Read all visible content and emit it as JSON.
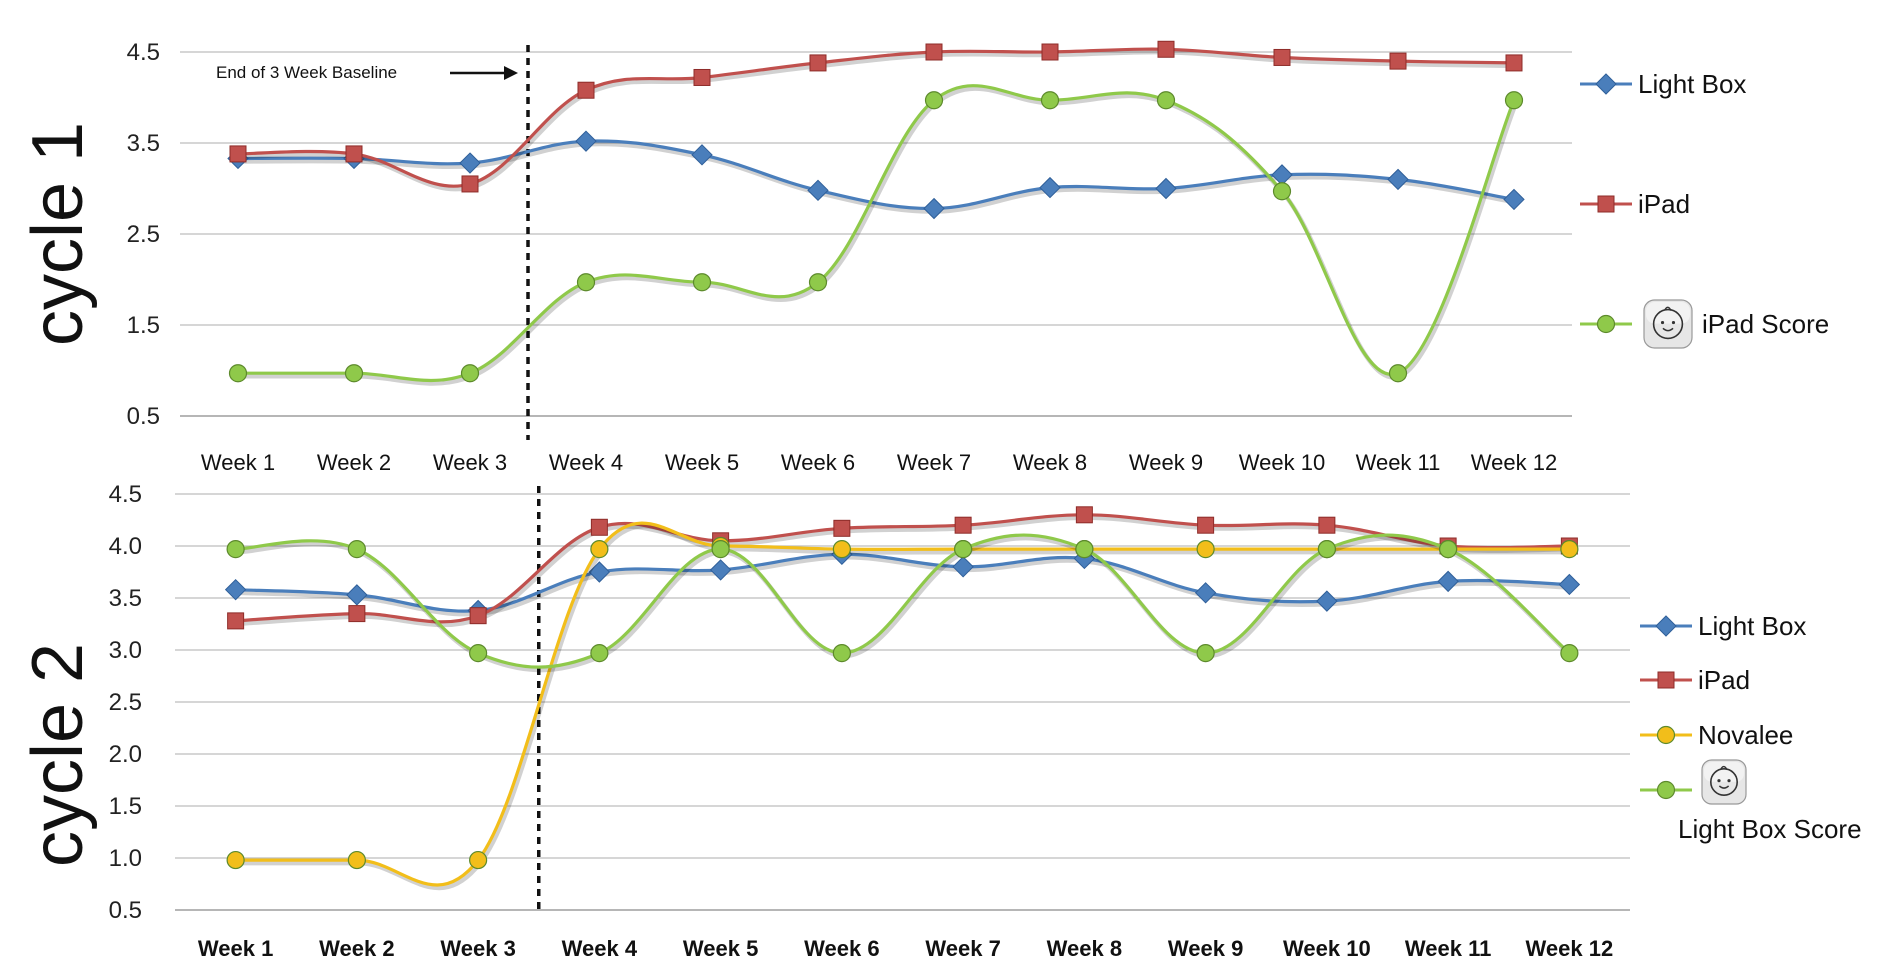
{
  "chart_data": [
    {
      "type": "line",
      "panel_label": "cycle 1",
      "categories": [
        "Week 1",
        "Week 2",
        "Week 3",
        "Week 4",
        "Week 5",
        "Week 6",
        "Week 7",
        "Week 8",
        "Week 9",
        "Week 10",
        "Week 11",
        "Week 12"
      ],
      "ylim": [
        0.5,
        4.5
      ],
      "yticks": [
        "0.5",
        "1.5",
        "2.5",
        "3.5",
        "4.5"
      ],
      "ytick_values": [
        0.5,
        1.5,
        2.5,
        3.5,
        4.5
      ],
      "grid": true,
      "legend_position": "right",
      "annotation": "End of 3 Week Baseline",
      "baseline_after_category": "Week 3",
      "series": [
        {
          "name": "Light Box",
          "color": "#4a7ebb",
          "marker": "diamond",
          "values": [
            3.33,
            3.33,
            3.28,
            3.52,
            3.37,
            2.98,
            2.78,
            3.01,
            3.0,
            3.15,
            3.1,
            2.88
          ]
        },
        {
          "name": "iPad",
          "color": "#c0504d",
          "marker": "square",
          "values": [
            3.38,
            3.38,
            3.05,
            4.08,
            4.22,
            4.38,
            4.5,
            4.5,
            4.53,
            4.44,
            4.4,
            4.38
          ]
        },
        {
          "name": "iPad Score",
          "color": "#8fc94a",
          "marker": "circle",
          "legend_icon": "baby-face-icon",
          "values": [
            0.97,
            0.97,
            0.97,
            1.97,
            1.97,
            1.97,
            3.97,
            3.97,
            3.97,
            2.97,
            0.97,
            3.97
          ]
        }
      ]
    },
    {
      "type": "line",
      "panel_label": "cycle 2",
      "categories": [
        "Week 1",
        "Week 2",
        "Week 3",
        "Week 4",
        "Week 5",
        "Week 6",
        "Week 7",
        "Week 8",
        "Week 9",
        "Week 10",
        "Week 11",
        "Week 12"
      ],
      "ylim": [
        0.5,
        4.5
      ],
      "yticks": [
        "0.5",
        "1.0",
        "1.5",
        "2.0",
        "2.5",
        "3.0",
        "3.5",
        "4.0",
        "4.5"
      ],
      "ytick_values": [
        0.5,
        1.0,
        1.5,
        2.0,
        2.5,
        3.0,
        3.5,
        4.0,
        4.5
      ],
      "grid": true,
      "legend_position": "right",
      "baseline_after_category": "Week 3",
      "series": [
        {
          "name": "Light Box",
          "color": "#4a7ebb",
          "marker": "diamond",
          "values": [
            3.58,
            3.53,
            3.38,
            3.75,
            3.77,
            3.92,
            3.8,
            3.88,
            3.55,
            3.47,
            3.66,
            3.63
          ]
        },
        {
          "name": "iPad",
          "color": "#c0504d",
          "marker": "square",
          "values": [
            3.28,
            3.35,
            3.33,
            4.18,
            4.05,
            4.17,
            4.2,
            4.3,
            4.2,
            4.2,
            4.0,
            4.0
          ]
        },
        {
          "name": "Novalee",
          "color": "#f2be1a",
          "marker": "circle",
          "values": [
            0.98,
            0.98,
            0.98,
            3.97,
            4.0,
            3.97,
            3.97,
            3.97,
            3.97,
            3.97,
            3.97,
            3.97
          ]
        },
        {
          "name": "Light Box Score",
          "color": "#8fc94a",
          "marker": "circle",
          "legend_icon": "baby-face-icon",
          "values": [
            3.97,
            3.97,
            2.97,
            2.97,
            3.97,
            2.97,
            3.97,
            3.97,
            2.97,
            3.97,
            3.97,
            2.97
          ]
        }
      ]
    }
  ]
}
